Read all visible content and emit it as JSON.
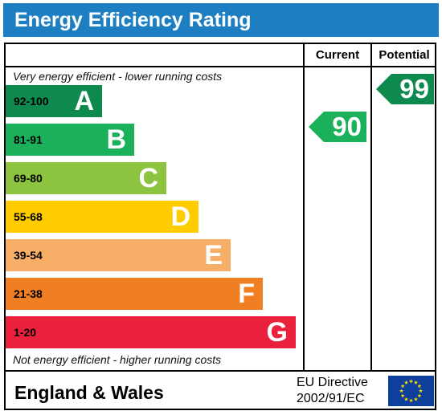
{
  "header": {
    "title": "Energy Efficiency Rating"
  },
  "columns": {
    "current": "Current",
    "potential": "Potential"
  },
  "notes": {
    "top": "Very energy efficient - lower running costs",
    "bottom": "Not energy efficient - higher running costs"
  },
  "bands": [
    {
      "range": "92-100",
      "letter": "A",
      "color": "#0f8a4e",
      "range_color": "#000000"
    },
    {
      "range": "81-91",
      "letter": "B",
      "color": "#1bb15b",
      "range_color": "#000000"
    },
    {
      "range": "69-80",
      "letter": "C",
      "color": "#8cc43f",
      "range_color": "#000000"
    },
    {
      "range": "55-68",
      "letter": "D",
      "color": "#ffcc00",
      "range_color": "#000000"
    },
    {
      "range": "39-54",
      "letter": "E",
      "color": "#f7ae67",
      "range_color": "#000000"
    },
    {
      "range": "21-38",
      "letter": "F",
      "color": "#f07e22",
      "range_color": "#000000"
    },
    {
      "range": "1-20",
      "letter": "G",
      "color": "#e9213c",
      "range_color": "#000000"
    }
  ],
  "ratings": {
    "current": {
      "value": "90",
      "band": "B",
      "color": "#1bb15b"
    },
    "potential": {
      "value": "99",
      "band": "A",
      "color": "#0f8a4e"
    }
  },
  "footer": {
    "region": "England & Wales",
    "directive_line1": "EU Directive",
    "directive_line2": "2002/91/EC",
    "flag_icon": "eu-flag-icon",
    "flag_color": "#0f3f9c",
    "star_color": "#ffdd00"
  }
}
